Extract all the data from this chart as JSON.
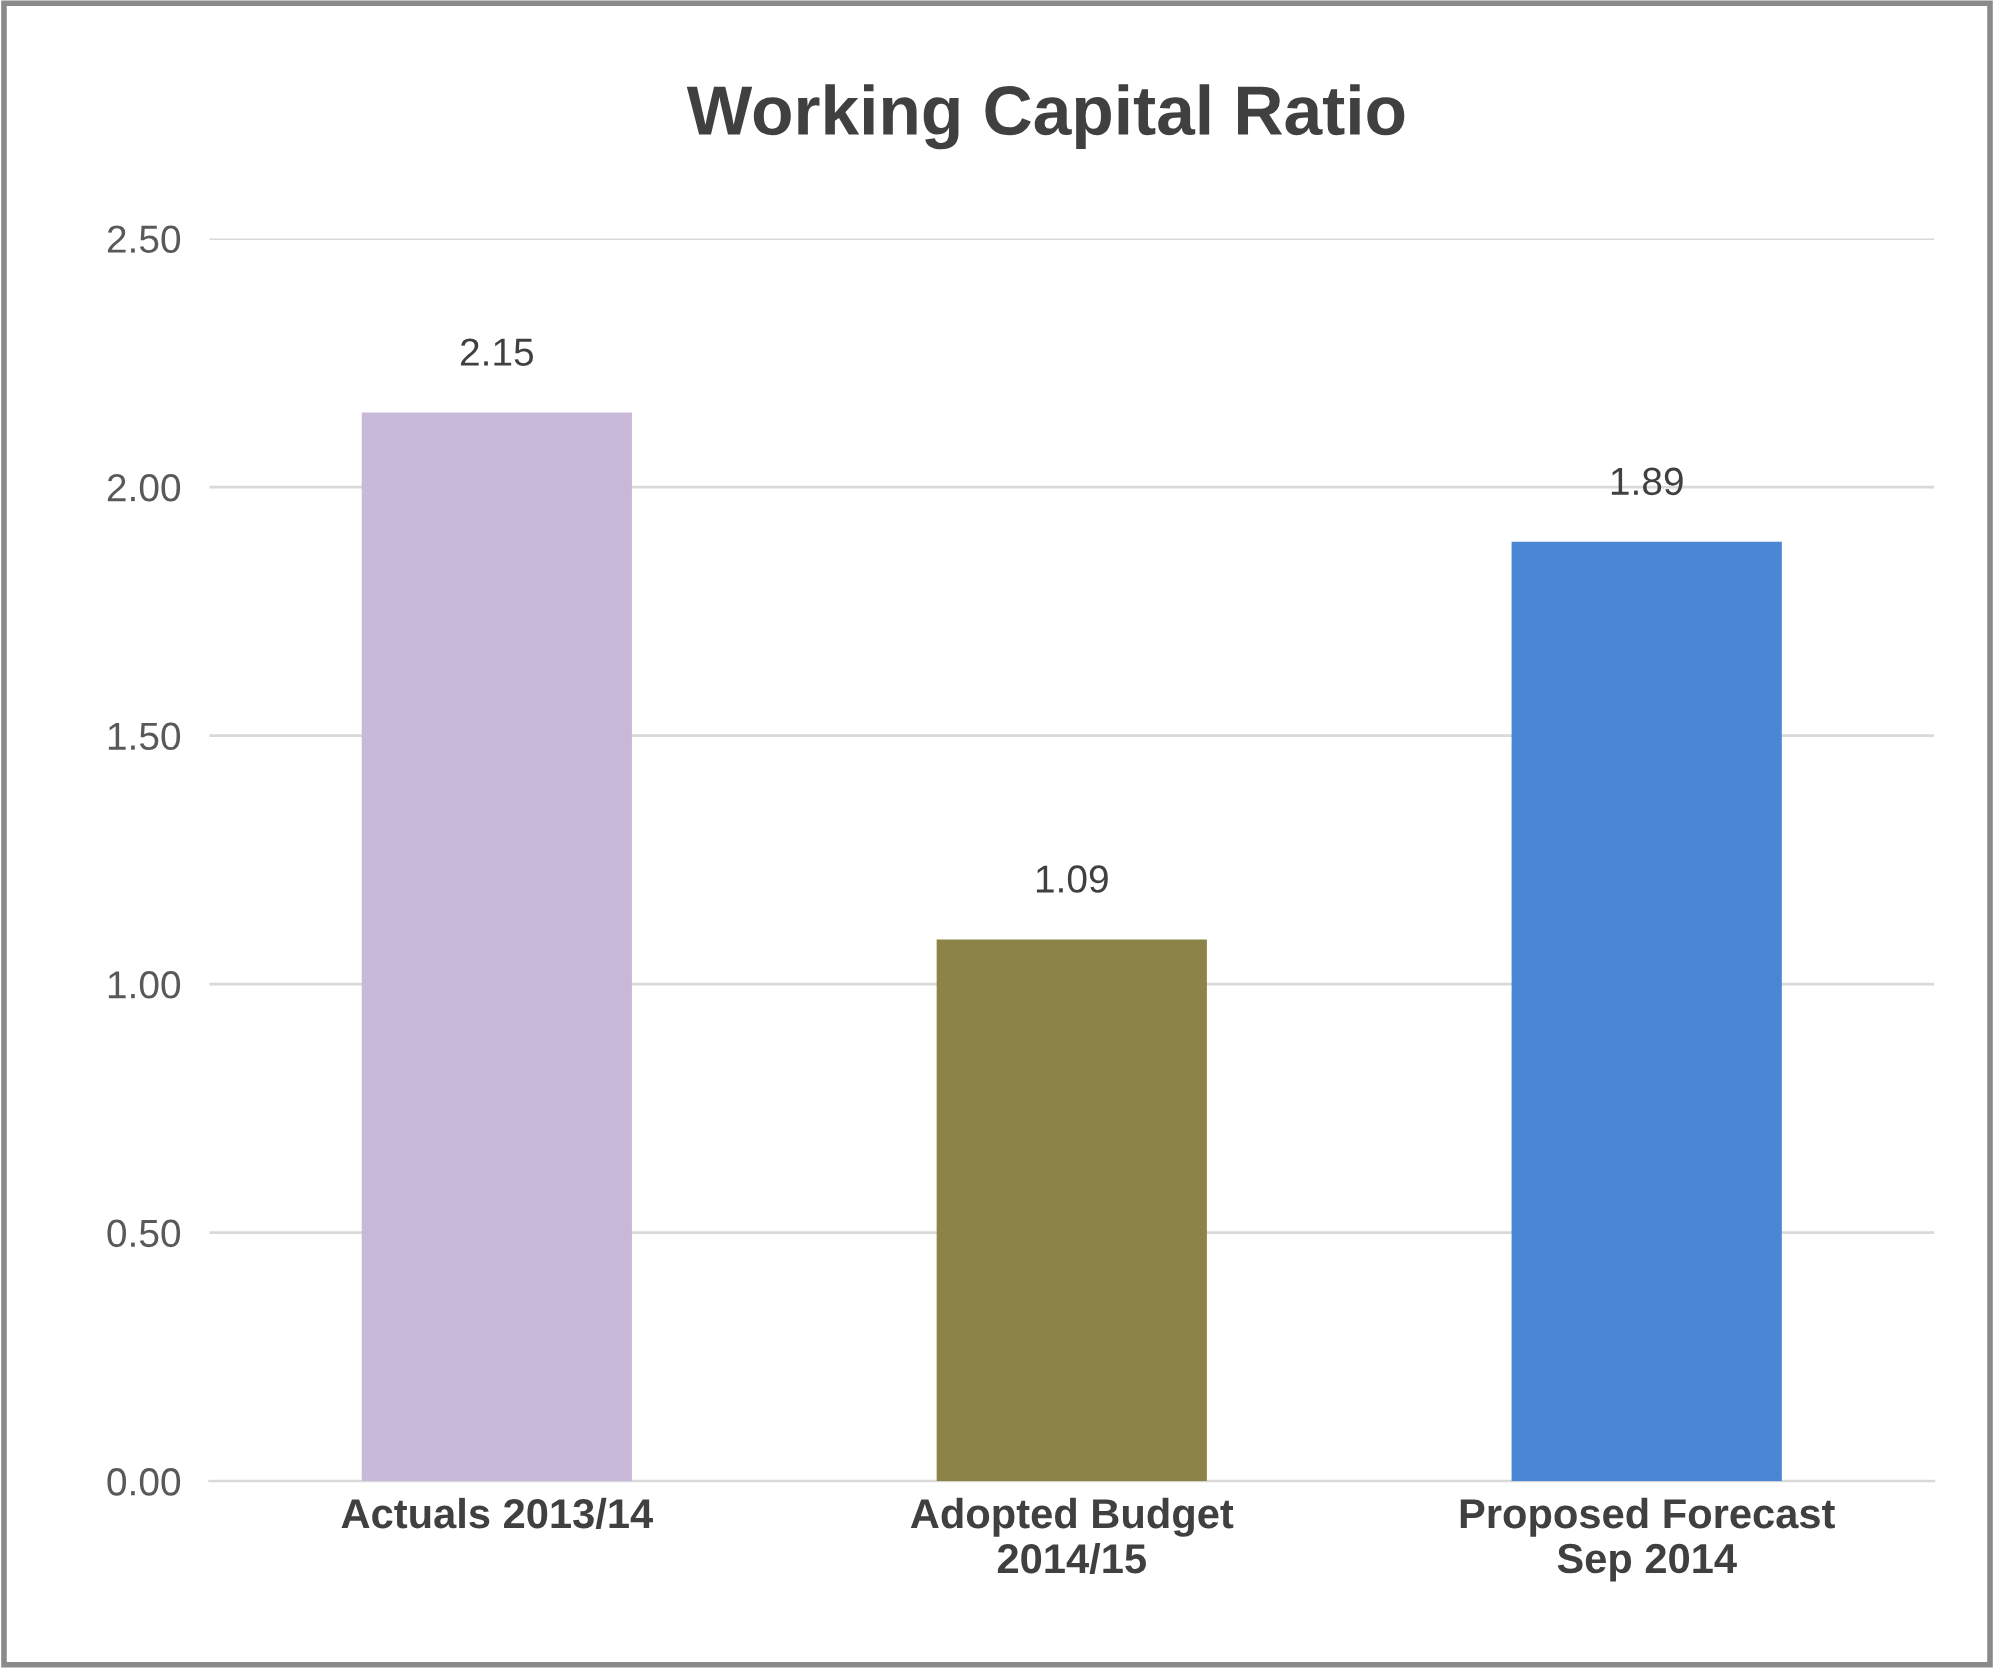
{
  "chart_data": {
    "type": "bar",
    "title": "Working Capital Ratio",
    "categories": [
      "Actuals 2013/14",
      "Adopted Budget\n2014/15",
      "Proposed Forecast\nSep 2014"
    ],
    "values": [
      2.15,
      1.09,
      1.89
    ],
    "colors": [
      "#c8b9d9",
      "#8c8446",
      "#4a86d3"
    ],
    "ylim": [
      0,
      2.5
    ],
    "yticks": [
      {
        "value": 0,
        "label": "0.00"
      },
      {
        "value": 0.5,
        "label": "0.50"
      },
      {
        "value": 1,
        "label": "1.00"
      },
      {
        "value": 1.5,
        "label": "1.50"
      },
      {
        "value": 2,
        "label": "2.00"
      },
      {
        "value": 2.5,
        "label": "2.50"
      }
    ],
    "value_labels": [
      "2.15",
      "1.09",
      "1.89"
    ],
    "grid": "y",
    "legend": false
  }
}
